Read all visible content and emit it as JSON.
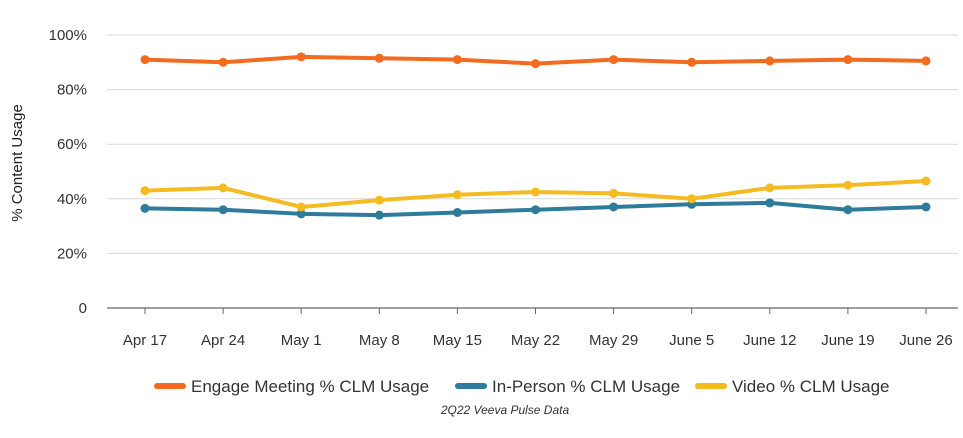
{
  "chart_data": {
    "type": "line",
    "ylabel": "% Content Usage",
    "xlabel": "",
    "caption": "2Q22 Veeva Pulse Data",
    "categories": [
      "Apr 17",
      "Apr 24",
      "May 1",
      "May 8",
      "May 15",
      "May 22",
      "May 29",
      "June 5",
      "June 12",
      "June 19",
      "June 26"
    ],
    "ylim": [
      0,
      100
    ],
    "yticks": [
      0,
      20,
      40,
      60,
      80,
      100
    ],
    "ytick_labels": [
      "0",
      "20%",
      "40%",
      "60%",
      "80%",
      "100%"
    ],
    "grid": true,
    "legend_position": "bottom",
    "series": [
      {
        "name": "Engage Meeting % CLM Usage",
        "color": "#f26b21",
        "values": [
          91,
          90,
          92,
          91.5,
          91,
          89.5,
          91,
          90,
          90.5,
          91,
          90.5
        ]
      },
      {
        "name": "In-Person % CLM Usage",
        "color": "#2e7b9b",
        "values": [
          36.5,
          36,
          34.5,
          34,
          35,
          36,
          37,
          38,
          38.5,
          36,
          37
        ]
      },
      {
        "name": "Video % CLM Usage",
        "color": "#f4bb22",
        "values": [
          43,
          44,
          37,
          39.5,
          41.5,
          42.5,
          42,
          40,
          44,
          45,
          46.5
        ]
      }
    ]
  }
}
